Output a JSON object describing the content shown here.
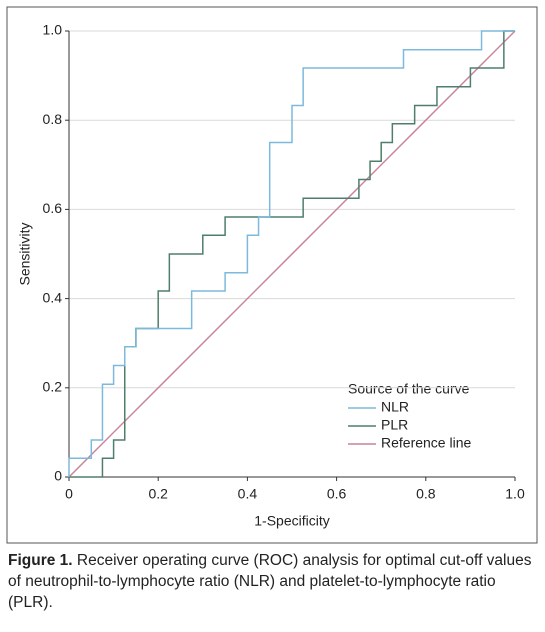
{
  "chart_data": {
    "type": "line",
    "xlabel": "1-Specificity",
    "ylabel": "Sensitivity",
    "xlim": [
      0,
      1
    ],
    "ylim": [
      0,
      1
    ],
    "xticks": [
      0,
      0.2,
      0.4,
      0.6,
      0.8,
      {
        "value": 1,
        "label": "1.0"
      }
    ],
    "yticks": [
      0,
      0.2,
      0.4,
      0.6,
      0.8,
      {
        "value": 1,
        "label": "1.0"
      }
    ],
    "grid": true,
    "legend_title": "Source of the curve",
    "legend_position": "lower right",
    "series": [
      {
        "name": "NLR",
        "color": "#7db9dc",
        "x": [
          0,
          0,
          0.05,
          0.05,
          0.075,
          0.075,
          0.1,
          0.1,
          0.125,
          0.125,
          0.15,
          0.15,
          0.275,
          0.275,
          0.35,
          0.35,
          0.4,
          0.4,
          0.425,
          0.425,
          0.45,
          0.45,
          0.5,
          0.5,
          0.525,
          0.525,
          0.75,
          0.75,
          0.925,
          0.925,
          1
        ],
        "values": [
          0,
          0.042,
          0.042,
          0.083,
          0.083,
          0.208,
          0.208,
          0.25,
          0.25,
          0.292,
          0.292,
          0.333,
          0.333,
          0.417,
          0.417,
          0.458,
          0.458,
          0.542,
          0.542,
          0.583,
          0.583,
          0.75,
          0.75,
          0.833,
          0.833,
          0.917,
          0.917,
          0.958,
          0.958,
          1,
          1
        ]
      },
      {
        "name": "PLR",
        "color": "#4f7e6b",
        "x": [
          0,
          0.075,
          0.075,
          0.1,
          0.1,
          0.125,
          0.125,
          0.15,
          0.15,
          0.2,
          0.2,
          0.225,
          0.225,
          0.3,
          0.3,
          0.35,
          0.35,
          0.525,
          0.525,
          0.65,
          0.65,
          0.675,
          0.675,
          0.7,
          0.7,
          0.725,
          0.725,
          0.775,
          0.775,
          0.825,
          0.825,
          0.9,
          0.9,
          0.975,
          0.975,
          1
        ],
        "values": [
          0,
          0,
          0.042,
          0.042,
          0.083,
          0.083,
          0.292,
          0.292,
          0.333,
          0.333,
          0.417,
          0.417,
          0.5,
          0.5,
          0.542,
          0.542,
          0.583,
          0.583,
          0.625,
          0.625,
          0.667,
          0.667,
          0.708,
          0.708,
          0.75,
          0.75,
          0.792,
          0.792,
          0.833,
          0.833,
          0.875,
          0.875,
          0.917,
          0.917,
          1,
          1
        ]
      },
      {
        "name": "Reference line",
        "color": "#c98499",
        "x": [
          0,
          1
        ],
        "values": [
          0,
          1
        ]
      }
    ]
  },
  "caption": {
    "label": "Figure 1.",
    "text": "Receiver operating curve (ROC) analysis for optimal cut-off values of neutrophil-to-lymphocyte ratio (NLR) and platelet-to-lymphocyte ratio (PLR)."
  }
}
